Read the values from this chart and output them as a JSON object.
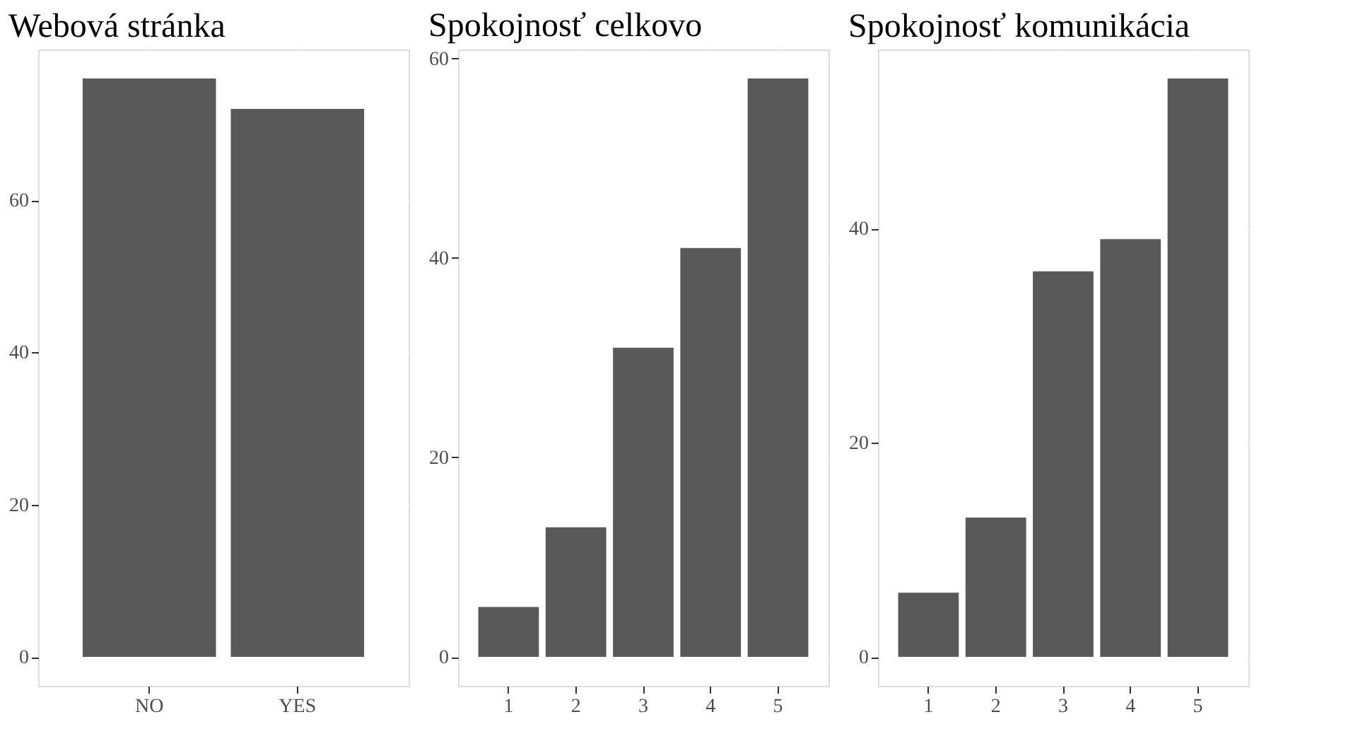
{
  "chart_data": [
    {
      "type": "bar",
      "title": "Webová stránka",
      "categories": [
        "NO",
        "YES"
      ],
      "values": [
        76,
        72
      ],
      "color": "#595959",
      "ylim": [
        -3.8,
        79.8
      ],
      "yticks": [
        0,
        20,
        40,
        60
      ],
      "grid": true
    },
    {
      "type": "bar",
      "title": "Spokojnosť celkovo",
      "categories": [
        "1",
        "2",
        "3",
        "4",
        "5"
      ],
      "values": [
        5,
        13,
        31,
        41,
        58
      ],
      "color": "#595959",
      "ylim": [
        -2.9,
        60.9
      ],
      "yticks": [
        0,
        20,
        40,
        60
      ],
      "grid": true
    },
    {
      "type": "bar",
      "title": "Spokojnosť komunikácia",
      "categories": [
        "1",
        "2",
        "3",
        "4",
        "5"
      ],
      "values": [
        6,
        13,
        36,
        39,
        54
      ],
      "color": "#595959",
      "ylim": [
        -2.7,
        56.7
      ],
      "yticks": [
        0,
        20,
        40
      ],
      "grid": true
    }
  ]
}
